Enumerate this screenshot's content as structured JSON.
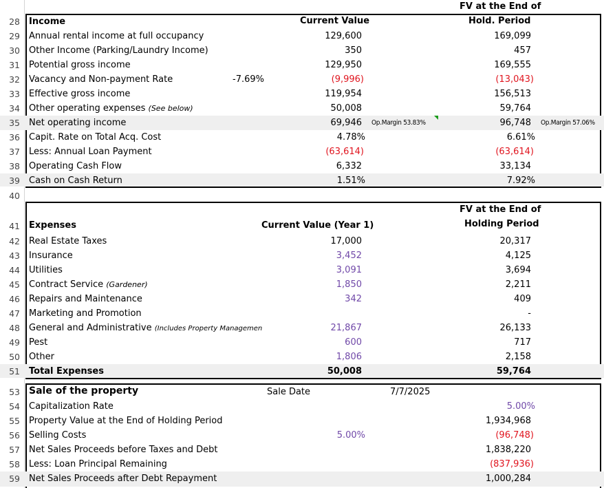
{
  "section_income": {
    "header_fv_line1": "FV at the End of",
    "header_fv_line2": "Hold. Period",
    "header_current": "Current Value",
    "rows": [
      {
        "n": "28",
        "label": "Income",
        "bold": true
      },
      {
        "n": "29",
        "label": "Annual rental income at full occupancy",
        "cur": "129,600",
        "fv": "169,099"
      },
      {
        "n": "30",
        "label": "Other Income (Parking/Laundry Income)",
        "cur": "350",
        "fv": "457"
      },
      {
        "n": "31",
        "label": "Potential gross income",
        "cur": "129,950",
        "fv": "169,555"
      },
      {
        "n": "32",
        "label": "Vacancy and Non-payment Rate",
        "rate": "-7.69%",
        "cur": "(9,996)",
        "fv": "(13,043)"
      },
      {
        "n": "33",
        "label": "Effective gross income",
        "cur": "119,954",
        "fv": "156,513"
      },
      {
        "n": "34",
        "label": "Other operating expenses",
        "note": "(See below)",
        "cur": "50,008",
        "fv": "59,764"
      },
      {
        "n": "35",
        "label": "Net operating income",
        "cur": "69,946",
        "cur_note": "Op.Margin 53.83%",
        "fv": "96,748",
        "fv_note": "Op.Margin 57.06%"
      },
      {
        "n": "36",
        "label": "Capit. Rate on Total Acq. Cost",
        "cur": "4.78%",
        "fv": "6.61%"
      },
      {
        "n": "37",
        "label": "Less: Annual Loan Payment",
        "cur": "(63,614)",
        "fv": "(63,614)"
      },
      {
        "n": "38",
        "label": "Operating Cash Flow",
        "cur": "6,332",
        "fv": "33,134"
      },
      {
        "n": "39",
        "label": "Cash on Cash Return",
        "cur": "1.51%",
        "fv": "7.92%"
      }
    ]
  },
  "row40": "40",
  "section_expenses": {
    "header_fv_line1": "FV at the End of",
    "header_fv_line2": "Holding Period",
    "header_current": "Current Value (Year 1)",
    "rows": [
      {
        "n": "41",
        "label": "Expenses"
      },
      {
        "n": "42",
        "label": "Real Estate Taxes",
        "cur": "17,000",
        "fv": "20,317"
      },
      {
        "n": "43",
        "label": "Insurance",
        "cur": "3,452",
        "fv": "4,125"
      },
      {
        "n": "44",
        "label": "Utilities",
        "cur": "3,091",
        "fv": "3,694"
      },
      {
        "n": "45",
        "label": "Contract Service",
        "note": "(Gardener)",
        "cur": "1,850",
        "fv": "2,211"
      },
      {
        "n": "46",
        "label": "Repairs and Maintenance",
        "cur": "342",
        "fv": "409"
      },
      {
        "n": "47",
        "label": "Marketing and Promotion",
        "cur": "",
        "fv": "-"
      },
      {
        "n": "48",
        "label": "General and Administrative",
        "note": "(Includes Property Managemen",
        "cur": "21,867",
        "fv": "26,133"
      },
      {
        "n": "49",
        "label": "Pest",
        "cur": "600",
        "fv": "717"
      },
      {
        "n": "50",
        "label": "Other",
        "cur": "1,806",
        "fv": "2,158"
      },
      {
        "n": "51",
        "label": "Total Expenses",
        "cur": "50,008",
        "fv": "59,764"
      }
    ]
  },
  "section_sale": {
    "rows": [
      {
        "n": "53",
        "label": "Sale of the property",
        "mid": "Sale Date",
        "date": "7/7/2025"
      },
      {
        "n": "54",
        "label": "Capitalization Rate",
        "fv": "5.00%"
      },
      {
        "n": "55",
        "label": "Property Value at the End of Holding Period",
        "fv": "1,934,968"
      },
      {
        "n": "56",
        "label": "Selling Costs",
        "cur": "5.00%",
        "fv": "(96,748)"
      },
      {
        "n": "57",
        "label": "Net Sales Proceeds before Taxes and Debt",
        "fv": "1,838,220"
      },
      {
        "n": "58",
        "label": "Less: Loan Principal Remaining",
        "fv": "(837,936)"
      },
      {
        "n": "59",
        "label": "Net Sales Proceeds after Debt Repayment",
        "fv": "1,000,284"
      }
    ]
  },
  "colors": {
    "negative": "#e0141e",
    "input": "#7048a8",
    "highlight": "#efefef"
  }
}
